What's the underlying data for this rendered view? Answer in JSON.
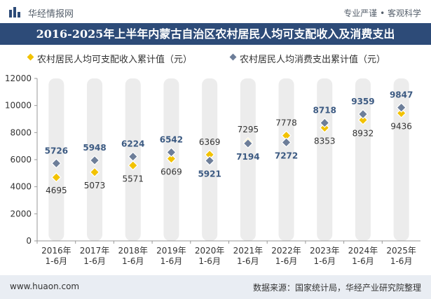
{
  "header": {
    "brand": "华经情报网",
    "tagline": "专业严谨 • 客观科学",
    "logo_icon": "bar-chart-logo-icon"
  },
  "colors": {
    "title_bg": "#2d4b78",
    "income": "#f2c200",
    "consumption": "#6d7e99",
    "bar_bg": "#ececec",
    "label_income": "#333333",
    "label_consumption": "#3c5a82"
  },
  "footer": {
    "url": "www.huaon.com",
    "source": "数据来源：国家统计局，华经产业研究院整理"
  },
  "chart_data": {
    "type": "line",
    "title": "2016-2025年上半年内蒙古自治区农村居民人均可支配收入及消费支出",
    "categories": [
      "2016年\n1-6月",
      "2017年\n1-6月",
      "2018年\n1-6月",
      "2019年\n1-6月",
      "2020年\n1-6月",
      "2021年\n1-6月",
      "2022年\n1-6月",
      "2023年\n1-6月",
      "2024年\n1-6月",
      "2025年\n1-6月"
    ],
    "series": [
      {
        "name": "农村居民人均可支配收入累计值（元）",
        "values": [
          4695,
          5073,
          5571,
          6069,
          6369,
          7295,
          7778,
          8353,
          8932,
          9436
        ]
      },
      {
        "name": "农村居民人均消费支出累计值（元）",
        "values": [
          5726,
          5948,
          6224,
          6542,
          5921,
          7194,
          7272,
          8718,
          9359,
          9847
        ]
      }
    ],
    "yticks": [
      0,
      2000,
      4000,
      6000,
      8000,
      10000,
      12000
    ],
    "ylim": [
      0,
      12000
    ],
    "legend_position": "top-left",
    "label_positions": {
      "income": [
        "below",
        "below",
        "below",
        "below",
        "above",
        "above",
        "above",
        "below",
        "below",
        "below"
      ],
      "consumption": [
        "above",
        "above",
        "above",
        "above",
        "below",
        "below",
        "below",
        "above",
        "above",
        "above"
      ]
    }
  }
}
